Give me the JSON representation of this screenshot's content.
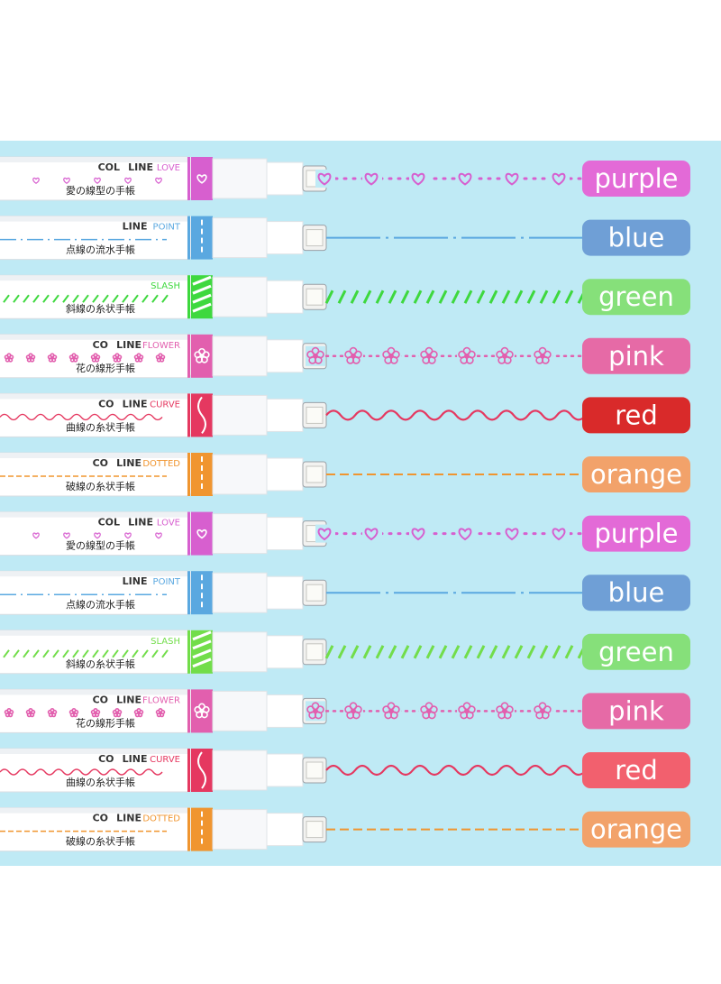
{
  "background": {
    "panel_color": "#bfeaf5",
    "page_color": "#ffffff"
  },
  "pens": [
    {
      "color_name": "purple",
      "style": "heart",
      "line_text": "LINE",
      "type_text": "LOVE",
      "brand_text": "COL",
      "cjk_text": "愛の線型の手帳",
      "accent": "#d75fcf",
      "label_bg": "#e36ad7"
    },
    {
      "color_name": "blue",
      "style": "dashdot",
      "line_text": "LINE",
      "type_text": "POINT",
      "brand_text": "",
      "cjk_text": "点線の流水手帳",
      "accent": "#5aa8e0",
      "label_bg": "#6f9fd6"
    },
    {
      "color_name": "green",
      "style": "slash",
      "line_text": "",
      "type_text": "SLASH",
      "brand_text": "",
      "cjk_text": "斜線の糸状手帳",
      "accent": "#3ed83e",
      "label_bg": "#86e07a"
    },
    {
      "color_name": "pink",
      "style": "flower",
      "line_text": "LINE",
      "type_text": "FLOWER",
      "brand_text": "CO",
      "cjk_text": "花の線形手帳",
      "accent": "#e25fae",
      "label_bg": "#e66aa6"
    },
    {
      "color_name": "red",
      "style": "wave",
      "line_text": "LINE",
      "type_text": "CURVE",
      "brand_text": "CO",
      "cjk_text": "曲線の糸状手帳",
      "accent": "#e53860",
      "label_bg": "#d92a2a"
    },
    {
      "color_name": "orange",
      "style": "dotted",
      "line_text": "LINE",
      "type_text": "DOTTED",
      "brand_text": "CO",
      "cjk_text": "破線の糸状手帳",
      "accent": "#f0952f",
      "label_bg": "#f2a26a"
    },
    {
      "color_name": "purple",
      "style": "heart",
      "line_text": "LINE",
      "type_text": "LOVE",
      "brand_text": "COL",
      "cjk_text": "愛の線型の手帳",
      "accent": "#d75fcf",
      "label_bg": "#e36ad7"
    },
    {
      "color_name": "blue",
      "style": "dashdot",
      "line_text": "LINE",
      "type_text": "POINT",
      "brand_text": "",
      "cjk_text": "点線の流水手帳",
      "accent": "#5aa8e0",
      "label_bg": "#6f9fd6"
    },
    {
      "color_name": "green",
      "style": "slash",
      "line_text": "",
      "type_text": "SLASH",
      "brand_text": "",
      "cjk_text": "斜線の糸状手帳",
      "accent": "#72dd4a",
      "label_bg": "#86e07a"
    },
    {
      "color_name": "pink",
      "style": "flower",
      "line_text": "LINE",
      "type_text": "FLOWER",
      "brand_text": "CO",
      "cjk_text": "花の線形手帳",
      "accent": "#e25fae",
      "label_bg": "#e66aa6"
    },
    {
      "color_name": "red",
      "style": "wave",
      "line_text": "LINE",
      "type_text": "CURVE",
      "brand_text": "CO",
      "cjk_text": "曲線の糸状手帳",
      "accent": "#e53860",
      "label_bg": "#f2606e"
    },
    {
      "color_name": "orange",
      "style": "dotted",
      "line_text": "LINE",
      "type_text": "DOTTED",
      "brand_text": "CO",
      "cjk_text": "破線の糸状手帳",
      "accent": "#f0952f",
      "label_bg": "#f2a26a"
    }
  ]
}
